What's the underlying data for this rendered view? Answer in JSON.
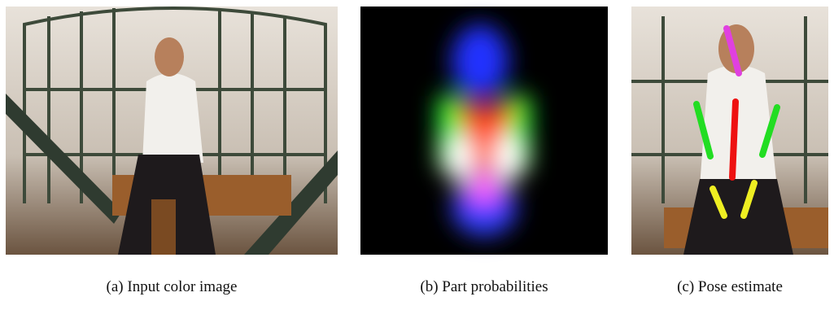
{
  "figure": {
    "panels": [
      {
        "caption": "(a) Input color image"
      },
      {
        "caption": "(b) Part probabilities"
      },
      {
        "caption": "(c) Pose estimate"
      }
    ]
  }
}
